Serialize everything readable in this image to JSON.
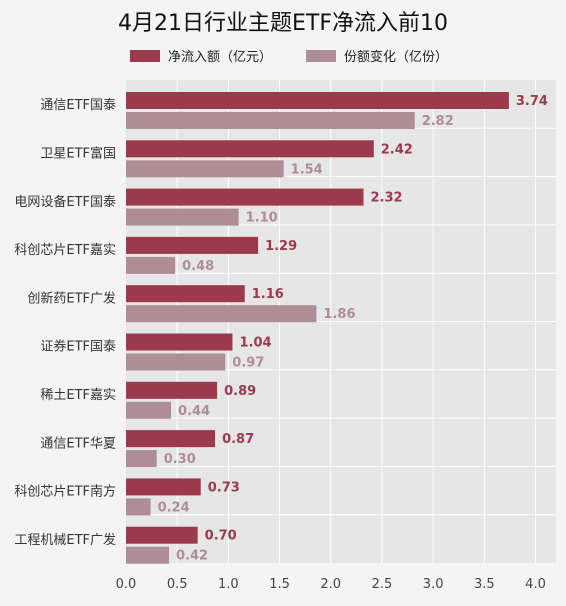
{
  "chart_data": {
    "type": "bar",
    "orientation": "horizontal",
    "title": "4月21日行业主题ETF净流入前10",
    "categories": [
      "通信ETF国泰",
      "卫星ETF富国",
      "电网设备ETF国泰",
      "科创芯片ETF嘉实",
      "创新药ETF广发",
      "证券ETF国泰",
      "稀土ETF嘉实",
      "通信ETF华夏",
      "科创芯片ETF南方",
      "工程机械ETF广发"
    ],
    "series": [
      {
        "name": "净流入额（亿元）",
        "color": "#9b3a4d",
        "values": [
          3.74,
          2.42,
          2.32,
          1.29,
          1.16,
          1.04,
          0.89,
          0.87,
          0.73,
          0.7
        ],
        "labels": [
          "3.74",
          "2.42",
          "2.32",
          "1.29",
          "1.16",
          "1.04",
          "0.89",
          "0.87",
          "0.73",
          "0.70"
        ]
      },
      {
        "name": "份额变化（亿份）",
        "color": "#ae8d96",
        "values": [
          2.82,
          1.54,
          1.1,
          0.48,
          1.86,
          0.97,
          0.44,
          0.3,
          0.24,
          0.42
        ],
        "labels": [
          "2.82",
          "1.54",
          "1.10",
          "0.48",
          "1.86",
          "0.97",
          "0.44",
          "0.30",
          "0.24",
          "0.42"
        ]
      }
    ],
    "xlim": [
      0,
      4.2
    ],
    "x_ticks": [
      "0.0",
      "0.5",
      "1.0",
      "1.5",
      "2.0",
      "2.5",
      "3.0",
      "3.5",
      "4.0"
    ],
    "grid": true,
    "legend_position": "top"
  }
}
